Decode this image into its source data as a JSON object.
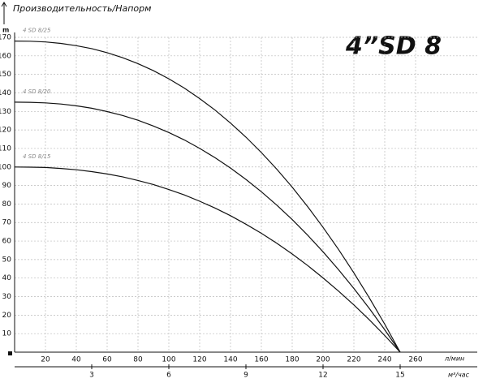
{
  "chart_data": {
    "type": "line",
    "title": "Производительность/Напорм",
    "model_label": "4”SD 8",
    "y_label": "m",
    "x_label": "л/мин",
    "x2_label": "м³/час",
    "x": [
      0,
      10,
      20,
      30,
      40,
      50,
      60,
      70,
      80,
      90,
      100,
      110,
      120,
      130,
      140,
      150,
      160,
      170,
      180,
      190,
      200,
      210,
      220,
      230,
      240,
      250
    ],
    "series": [
      {
        "name": "4 SD 8/25",
        "color": "#111111",
        "values": [
          168,
          167.9,
          167.5,
          166.7,
          165.5,
          163.9,
          161.7,
          159,
          155.8,
          152,
          147.6,
          142.6,
          136.9,
          130.7,
          123.7,
          116.1,
          107.8,
          98.8,
          89.1,
          78.6,
          67.4,
          55.5,
          42.8,
          29.3,
          15.1,
          0
        ]
      },
      {
        "name": "4 SD 8/20",
        "color": "#111111",
        "values": [
          135,
          134.9,
          134.6,
          134,
          133,
          131.7,
          129.9,
          127.8,
          125.2,
          122.1,
          118.6,
          114.6,
          110,
          105,
          99.4,
          93.3,
          86.6,
          79.4,
          71.6,
          63.2,
          54.2,
          44.6,
          34.4,
          23.6,
          12.1,
          0
        ]
      },
      {
        "name": "4 SD 8/15",
        "color": "#111111",
        "values": [
          100,
          99.9,
          99.7,
          99.2,
          98.5,
          97.5,
          96.2,
          94.7,
          92.7,
          90.5,
          87.8,
          84.9,
          81.5,
          77.8,
          73.7,
          69.1,
          64.2,
          58.8,
          53,
          46.8,
          40.1,
          33,
          25.5,
          17.5,
          9,
          0
        ]
      }
    ],
    "xlim": [
      0,
      300
    ],
    "xticks": [
      20,
      40,
      60,
      80,
      100,
      120,
      140,
      160,
      180,
      200,
      220,
      240,
      260
    ],
    "x2lim": [
      0,
      18
    ],
    "x2ticks": [
      3,
      6,
      9,
      12,
      15
    ],
    "ylim": [
      0,
      170
    ],
    "yticks": [
      10,
      20,
      30,
      40,
      50,
      60,
      70,
      80,
      90,
      100,
      110,
      120,
      130,
      140,
      150,
      160,
      170
    ],
    "grid": true
  }
}
